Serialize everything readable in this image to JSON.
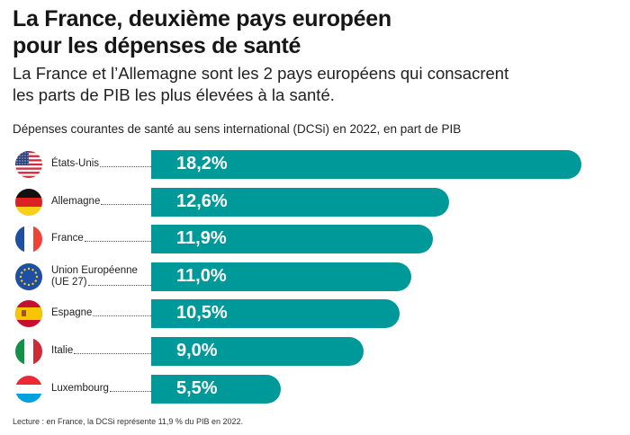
{
  "header": {
    "title_line1": "La France, deuxième pays européen",
    "title_line2": "pour les dépenses de santé",
    "subtitle_line1": "La France et l’Allemagne sont les 2 pays européens qui consacrent",
    "subtitle_line2": "les parts de PIB les plus élevées à la santé."
  },
  "chart_data": {
    "type": "bar",
    "orientation": "horizontal",
    "title": "Dépenses courantes de santé au sens international (DCSi) en 2022, en part de PIB",
    "categories": [
      "États-Unis",
      "Allemagne",
      "France",
      "Union Européenne (UE 27)",
      "Espagne",
      "Italie",
      "Luxembourg"
    ],
    "category_lines": [
      [
        "États-Unis"
      ],
      [
        "Allemagne"
      ],
      [
        "France"
      ],
      [
        "Union Européenne",
        "(UE 27)"
      ],
      [
        "Espagne"
      ],
      [
        "Italie"
      ],
      [
        "Luxembourg"
      ]
    ],
    "values": [
      18.2,
      12.6,
      11.9,
      11.0,
      10.5,
      9.0,
      5.5
    ],
    "data_labels": [
      "18,2%",
      "12,6%",
      "11,9%",
      "11,0%",
      "10,5%",
      "9,0%",
      "5,5%"
    ],
    "flags": [
      "us-flag-icon",
      "germany-flag-icon",
      "france-flag-icon",
      "eu-flag-icon",
      "spain-flag-icon",
      "italy-flag-icon",
      "luxembourg-flag-icon"
    ],
    "bar_color": "#00999a",
    "unit": "% du PIB"
  },
  "footer": {
    "note": "Lecture : en France, la DCSi représente 11,9 % du PIB en 2022."
  }
}
